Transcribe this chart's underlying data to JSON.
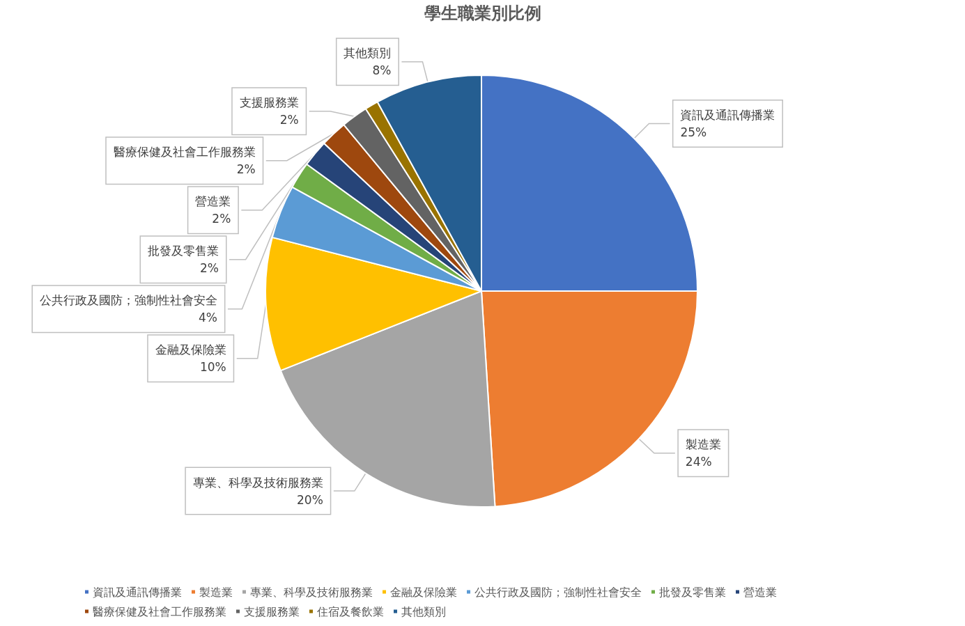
{
  "chart_data": {
    "type": "pie",
    "title": "學生職業別比例",
    "categories": [
      "資訊及通訊傳播業",
      "製造業",
      "專業、科學及技術服務業",
      "金融及保險業",
      "公共行政及國防；強制性社會安全",
      "批發及零售業",
      "營造業",
      "醫療保健及社會工作服務業",
      "支援服務業",
      "住宿及餐飲業",
      "其他類別"
    ],
    "values": [
      25,
      24,
      20,
      10,
      4,
      2,
      2,
      2,
      2,
      1,
      8
    ],
    "value_labels": [
      "25%",
      "24%",
      "20%",
      "10%",
      "4%",
      "2%",
      "2%",
      "2%",
      "2%",
      null,
      "8%"
    ],
    "colors": [
      "#4472c4",
      "#ed7d31",
      "#a5a5a5",
      "#ffc000",
      "#5b9bd5",
      "#70ad47",
      "#264478",
      "#9e480e",
      "#636363",
      "#997300",
      "#255e91"
    ],
    "legend": "bottom"
  }
}
